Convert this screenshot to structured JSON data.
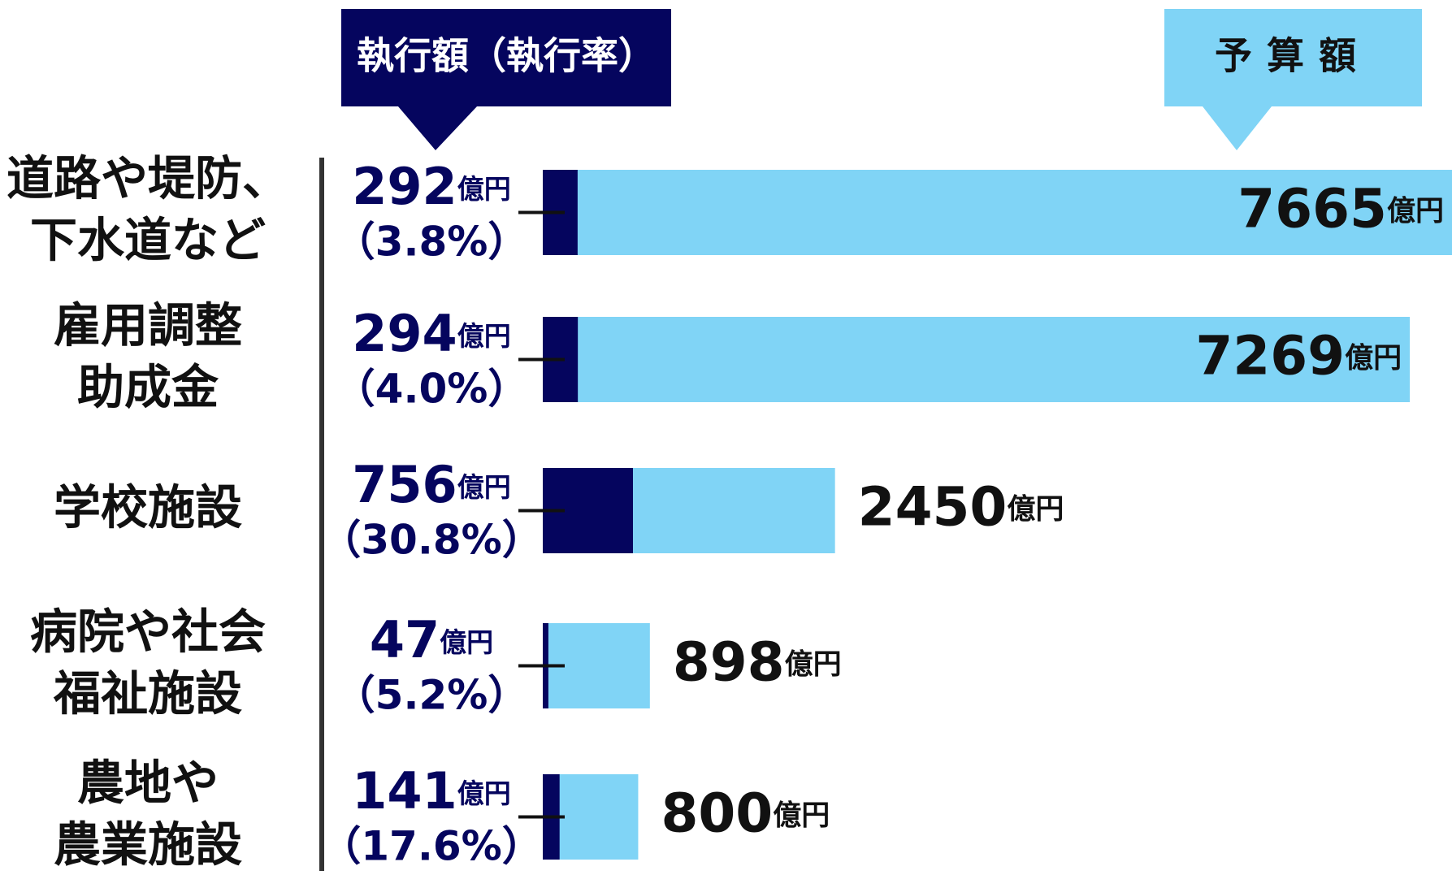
{
  "chart_data": {
    "type": "bar",
    "categories": [
      [
        "道路や堤防、",
        "下水道など"
      ],
      [
        "雇用調整",
        "助成金"
      ],
      [
        "学校施設"
      ],
      [
        "病院や社会",
        "福祉施設"
      ],
      [
        "農地や",
        "農業施設"
      ]
    ],
    "unit": "億円",
    "series": [
      {
        "name": "予算額",
        "color": "#80d4f6",
        "values": [
          7665,
          7269,
          2450,
          898,
          800
        ]
      },
      {
        "name": "執行額（執行率）",
        "color": "#05055e",
        "values": [
          292,
          294,
          756,
          47,
          141
        ]
      }
    ],
    "rates": {
      "values": [
        3.8,
        4.0,
        30.8,
        5.2,
        17.6
      ],
      "value_labels": [
        "（3.8%）",
        "（4.0%）",
        "（30.8%）",
        "（5.2%）",
        "（17.6%）"
      ]
    }
  }
}
